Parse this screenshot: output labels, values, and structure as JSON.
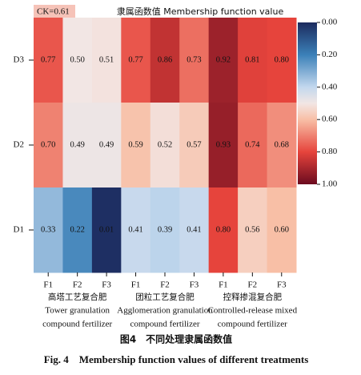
{
  "chart_data": {
    "type": "heatmap",
    "title": "隶属函数值 Membership function value",
    "annotation": "CK=0.61",
    "x": [
      "F1",
      "F2",
      "F3",
      "F1",
      "F2",
      "F3",
      "F1",
      "F2",
      "F3"
    ],
    "groups": [
      {
        "lines": [
          "高塔工艺复合肥",
          "Tower granulation",
          "compound fertilizer"
        ]
      },
      {
        "lines": [
          "团粒工艺复合肥",
          "Agglomeration granulation",
          "compound fertilizer"
        ]
      },
      {
        "lines": [
          "控释掺混复合肥",
          "Controlled-release mixed",
          "compound fertilizer"
        ]
      }
    ],
    "series": [
      {
        "name": "D3",
        "values": [
          0.77,
          0.5,
          0.51,
          0.77,
          0.86,
          0.73,
          0.92,
          0.81,
          0.8
        ],
        "value_labels": [
          "0.77",
          "0.50",
          "0.51",
          "0.77",
          "0.86",
          "0.73",
          "0.92",
          "0.81",
          "0.80"
        ]
      },
      {
        "name": "D2",
        "values": [
          0.7,
          0.49,
          0.49,
          0.59,
          0.52,
          0.57,
          0.93,
          0.74,
          0.68
        ],
        "value_labels": [
          "0.70",
          "0.49",
          "0.49",
          "0.59",
          "0.52",
          "0.57",
          "0.93",
          "0.74",
          "0.68"
        ]
      },
      {
        "name": "D1",
        "values": [
          0.33,
          0.22,
          0.01,
          0.41,
          0.39,
          0.41,
          0.8,
          0.56,
          0.6
        ],
        "value_labels": [
          "0.33",
          "0.22",
          "0.01",
          "0.41",
          "0.39",
          "0.41",
          "0.80",
          "0.56",
          "0.60"
        ]
      }
    ],
    "zlim": [
      0,
      1
    ],
    "zticks": [
      {
        "value": 0,
        "label": "0.00"
      },
      {
        "value": 0.2,
        "label": "0.20"
      },
      {
        "value": 0.4,
        "label": "0.40"
      },
      {
        "value": 0.6,
        "label": "0.60"
      },
      {
        "value": 0.8,
        "label": "0.80"
      },
      {
        "value": 1,
        "label": "1.00"
      }
    ],
    "colorscale": [
      [
        0,
        "#1c2b5e"
      ],
      [
        0.2,
        "#3b80b8"
      ],
      [
        0.4,
        "#c3d8ee"
      ],
      [
        0.5,
        "#f2e6e4"
      ],
      [
        0.6,
        "#f8bfa6"
      ],
      [
        0.8,
        "#e6443c"
      ],
      [
        1,
        "#6b0b1f"
      ]
    ],
    "figure_caption_cn": "图4　不同处理隶属函数值",
    "figure_caption_en": "Fig. 4　Membership function values of different treatments"
  }
}
